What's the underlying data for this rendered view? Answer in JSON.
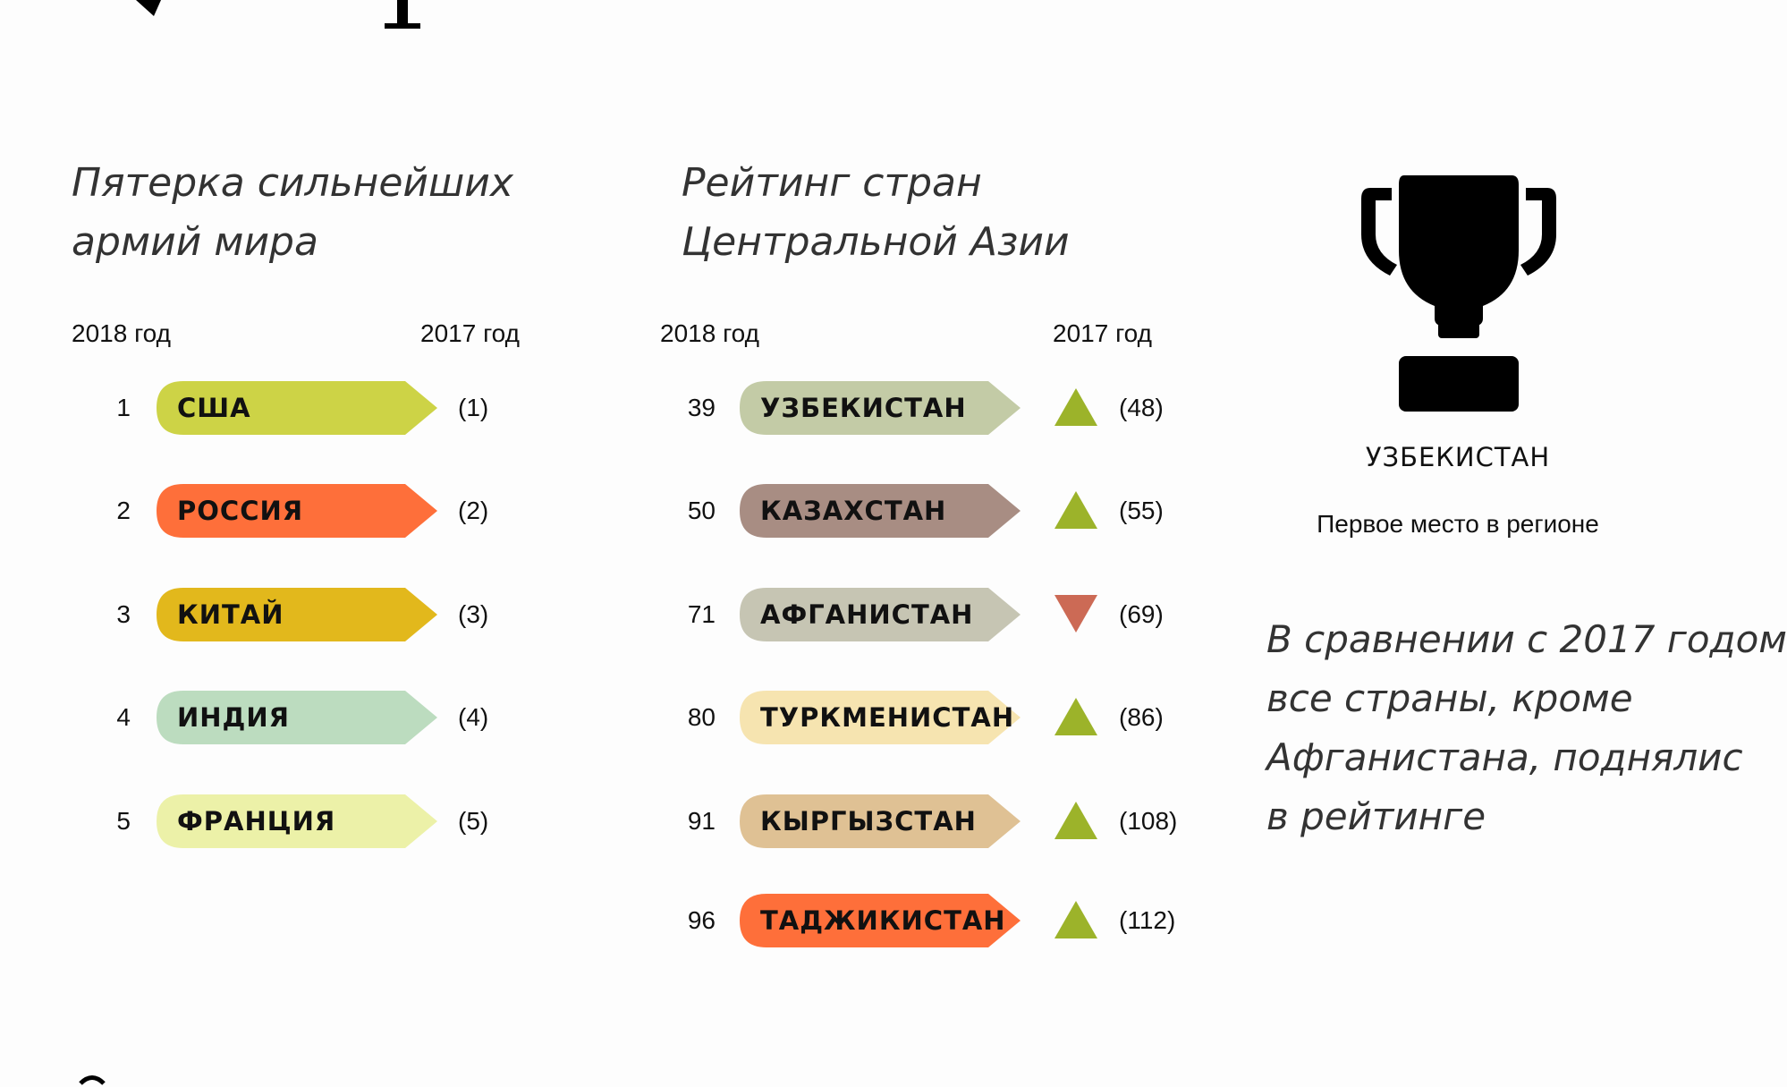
{
  "colors": {
    "up": "#9cb32a",
    "down": "#cc6a55",
    "trophy": "#000000"
  },
  "left_panel": {
    "title_line1": "Пятерка сильнейших",
    "title_line2": "армий мира",
    "year_2018": "2018 год",
    "year_2017": "2017 год"
  },
  "middle_panel": {
    "title_line1": "Рейтинг стран",
    "title_line2": "Центральной Азии",
    "year_2018": "2018 год",
    "year_2017": "2017 год"
  },
  "right_panel": {
    "trophy_icon": "trophy-icon",
    "winner": "УЗБЕКИСТАН",
    "winner_caption": "Первое место в регионе",
    "comment_lines": [
      "В сравнении с 2017 годом",
      "все страны, кроме",
      "Афганистана, поднялис",
      "в рейтинге"
    ]
  },
  "chart_data": [
    {
      "type": "table",
      "title": "Пятерка сильнейших армий мира",
      "columns": [
        "2018 год",
        "2017 год"
      ],
      "rows": [
        {
          "rank_2018": "1",
          "country": "США",
          "rank_2017": "(1)",
          "color": "#cdd346"
        },
        {
          "rank_2018": "2",
          "country": "РОССИЯ",
          "rank_2017": "(2)",
          "color": "#fe6f3a"
        },
        {
          "rank_2018": "3",
          "country": "КИТАЙ",
          "rank_2017": "(3)",
          "color": "#e2b81c"
        },
        {
          "rank_2018": "4",
          "country": "ИНДИЯ",
          "rank_2017": "(4)",
          "color": "#bcdcbf"
        },
        {
          "rank_2018": "5",
          "country": "ФРАНЦИЯ",
          "rank_2017": "(5)",
          "color": "#ecf1a8"
        }
      ]
    },
    {
      "type": "table",
      "title": "Рейтинг стран Центральной Азии",
      "columns": [
        "2018 год",
        "2017 год"
      ],
      "rows": [
        {
          "rank_2018": "39",
          "country": "УЗБЕКИСТАН",
          "rank_2017": "(48)",
          "color": "#c3cba6",
          "trend": "up"
        },
        {
          "rank_2018": "50",
          "country": "КАЗАХСТАН",
          "rank_2017": "(55)",
          "color": "#a88d83",
          "trend": "up"
        },
        {
          "rank_2018": "71",
          "country": "АФГАНИСТАН",
          "rank_2017": "(69)",
          "color": "#c6c5b3",
          "trend": "down"
        },
        {
          "rank_2018": "80",
          "country": "ТУРКМЕНИСТАН",
          "rank_2017": "(86)",
          "color": "#f6e4b0",
          "trend": "up"
        },
        {
          "rank_2018": "91",
          "country": "КЫРГЫЗСТАН",
          "rank_2017": "(108)",
          "color": "#dfc194",
          "trend": "up"
        },
        {
          "rank_2018": "96",
          "country": "ТАДЖИКИСТАН",
          "rank_2017": "(112)",
          "color": "#fe6f3a",
          "trend": "up"
        }
      ]
    }
  ]
}
